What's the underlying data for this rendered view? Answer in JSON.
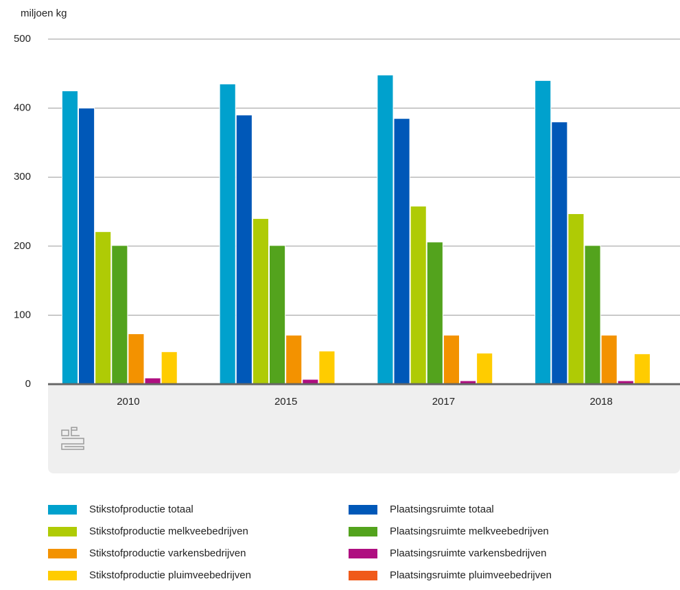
{
  "chart_data": {
    "type": "bar",
    "y_label": "miljoen kg",
    "categories": [
      "2010",
      "2015",
      "2017",
      "2018"
    ],
    "series": [
      {
        "name": "Stikstofproductie totaal",
        "color": "#00a1cd",
        "values": [
          425,
          435,
          448,
          440
        ]
      },
      {
        "name": "Plaatsingsruimte totaal",
        "color": "#0058b8",
        "values": [
          400,
          390,
          385,
          380
        ]
      },
      {
        "name": "Stikstofproductie melkveebedrijven",
        "color": "#afcb05",
        "values": [
          221,
          240,
          258,
          247
        ]
      },
      {
        "name": "Plaatsingsruimte melkveebedrijven",
        "color": "#53a31d",
        "values": [
          201,
          201,
          206,
          201
        ]
      },
      {
        "name": "Stikstofproductie varkensbedrijven",
        "color": "#f39200",
        "values": [
          73,
          71,
          71,
          71
        ]
      },
      {
        "name": "Plaatsingsruimte varkensbedrijven",
        "color": "#af0e80",
        "values": [
          9,
          7,
          5,
          5
        ]
      },
      {
        "name": "Stikstofproductie pluimveebedrijven",
        "color": "#ffcc00",
        "values": [
          47,
          48,
          45,
          44
        ]
      },
      {
        "name": "Plaatsingsruimte pluimveebedrijven",
        "color": "#f05a1a",
        "values": [
          2,
          2,
          2,
          2
        ]
      }
    ],
    "ylim": [
      0,
      500
    ],
    "yticks": [
      0,
      100,
      200,
      300,
      400,
      500
    ],
    "grid": true
  }
}
